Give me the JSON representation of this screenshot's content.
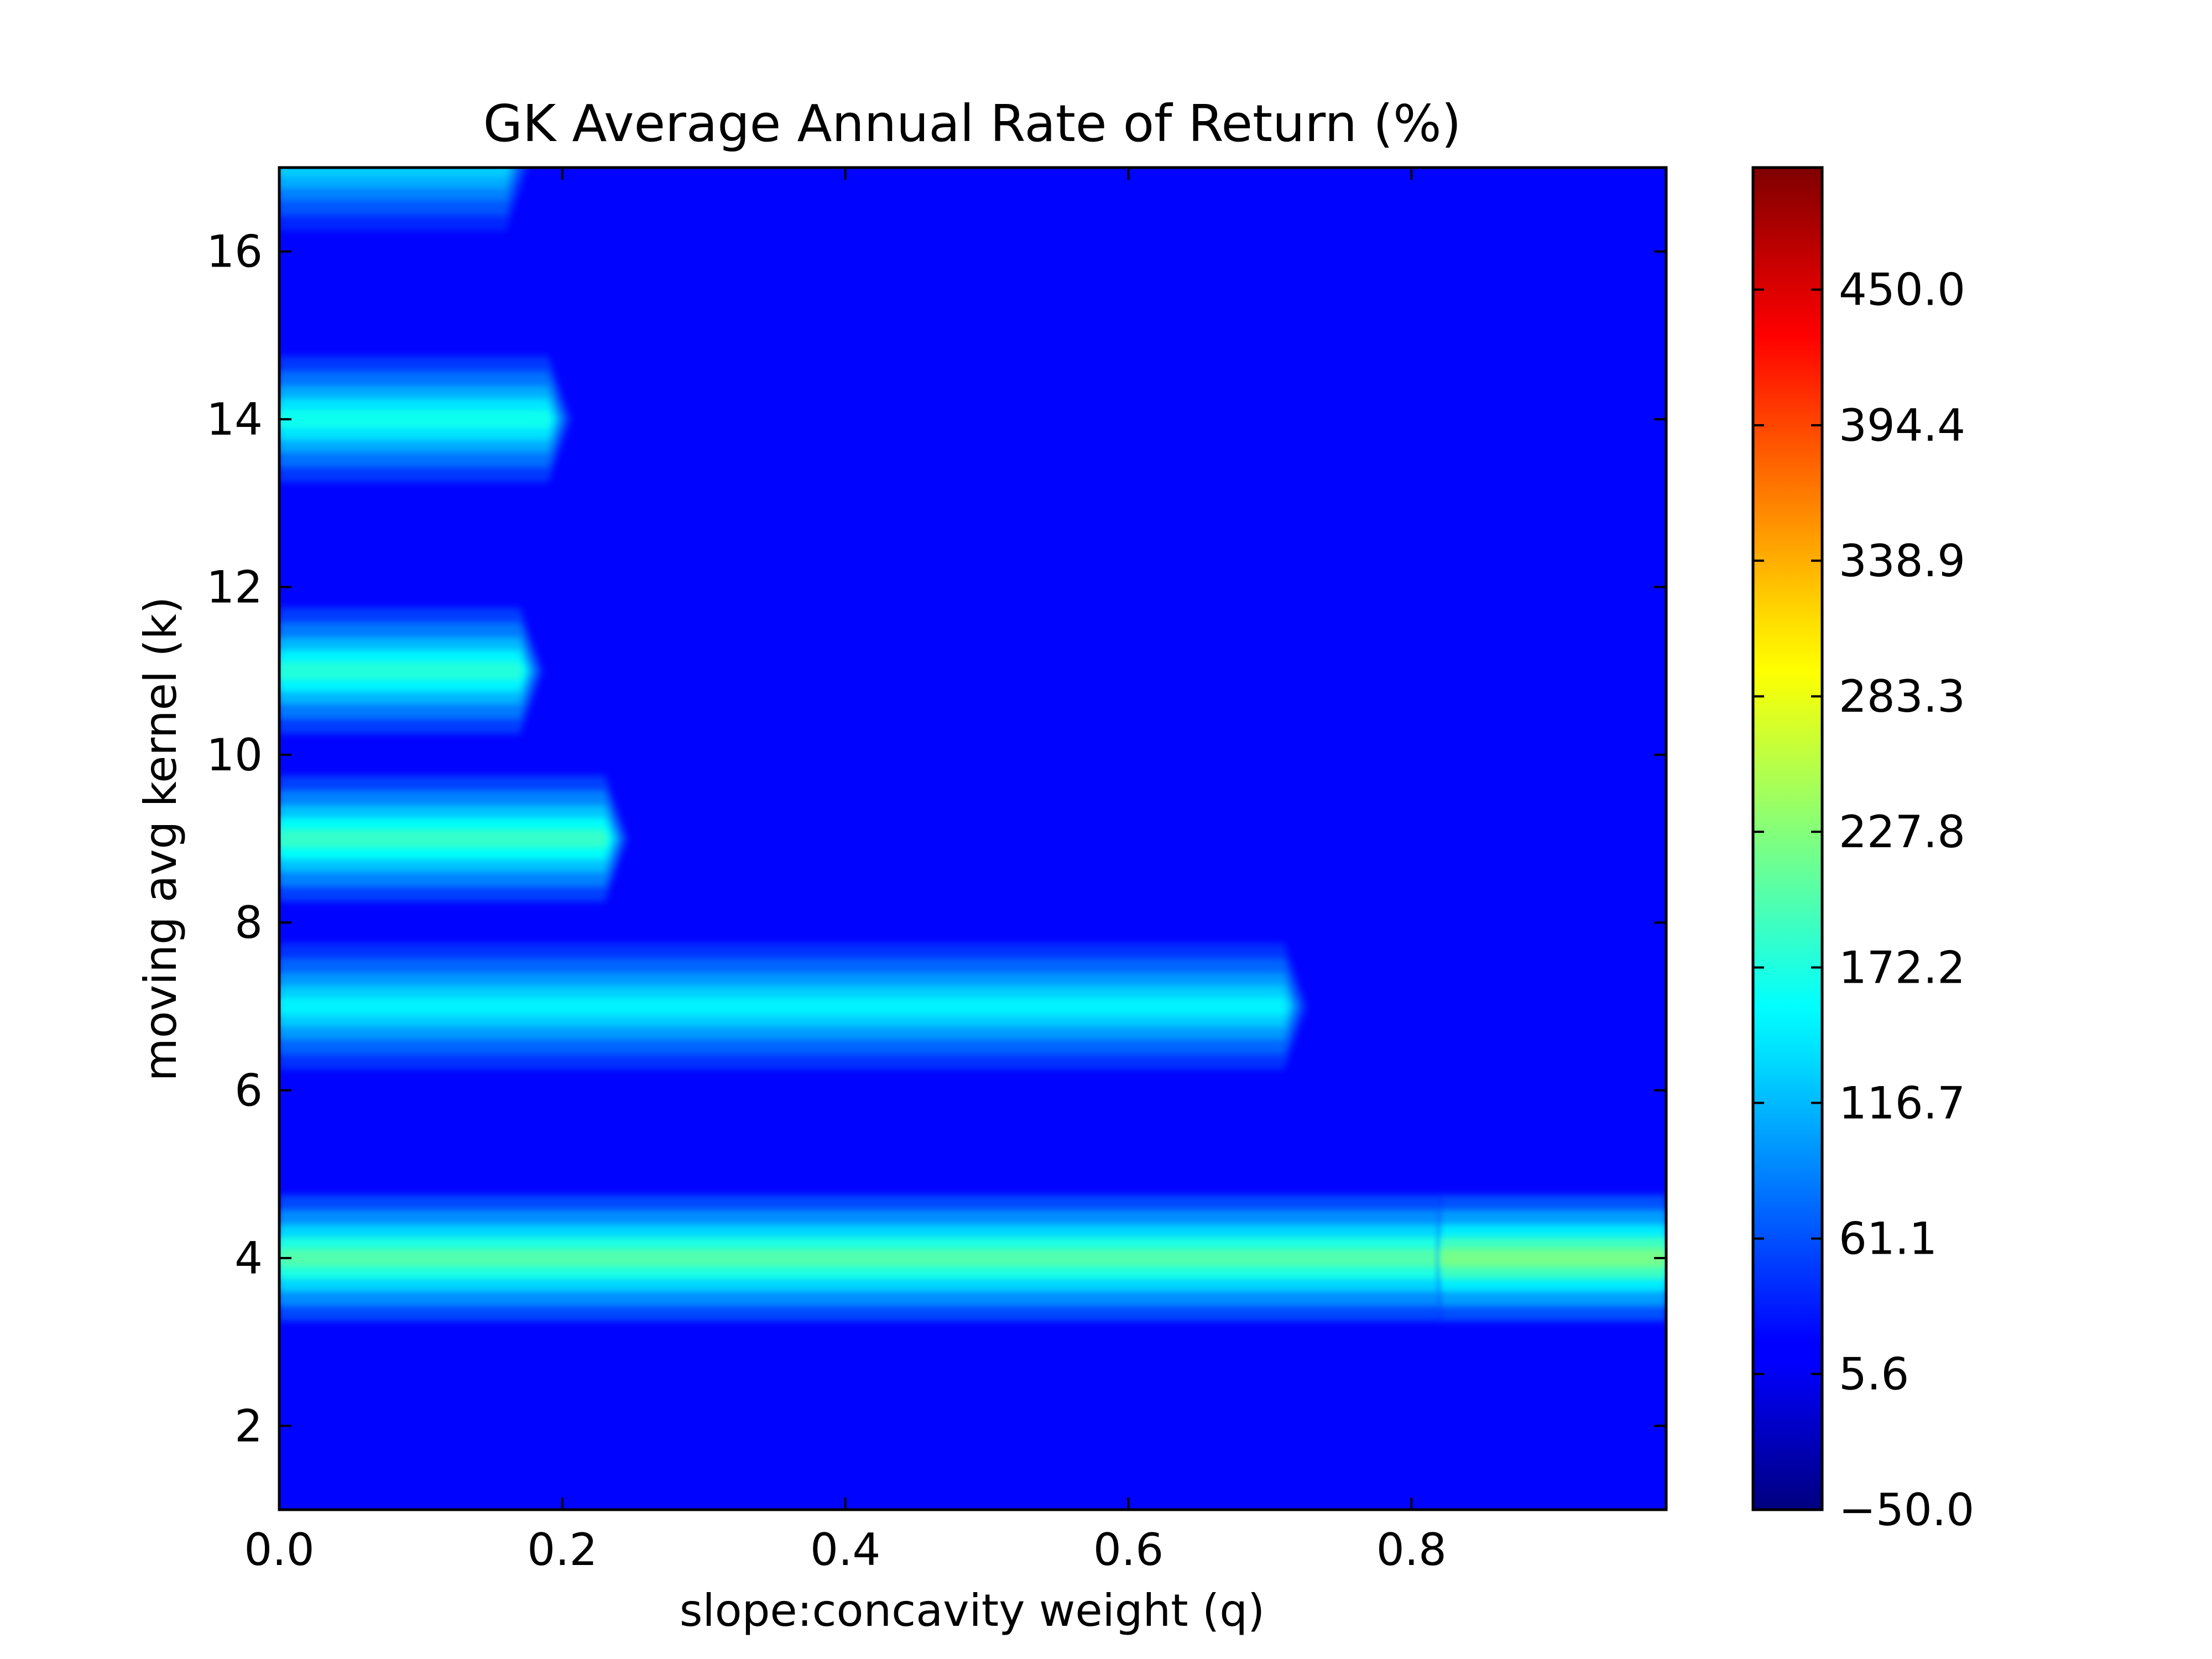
{
  "chart_data": {
    "type": "heatmap",
    "title": "GK Average Annual Rate of Return (%)",
    "xlabel": "slope:concavity weight (q)",
    "ylabel": "moving avg kernel (k)",
    "xlim": [
      0.0,
      0.98
    ],
    "ylim": [
      1,
      17
    ],
    "x_ticks": [
      0.0,
      0.2,
      0.4,
      0.6,
      0.8
    ],
    "x_tick_labels": [
      "0.0",
      "0.2",
      "0.4",
      "0.6",
      "0.8"
    ],
    "y_ticks": [
      2,
      4,
      6,
      8,
      10,
      12,
      14,
      16
    ],
    "y_tick_labels": [
      "2",
      "4",
      "6",
      "8",
      "10",
      "12",
      "14",
      "16"
    ],
    "colorbar": {
      "colormap": "jet",
      "range": [
        -50.0,
        500.0
      ],
      "ticks": [
        -50.0,
        5.6,
        61.1,
        116.7,
        172.2,
        227.8,
        283.3,
        338.9,
        394.4,
        450.0
      ],
      "tick_labels": [
        "−50.0",
        "5.6",
        "61.1",
        "116.7",
        "172.2",
        "227.8",
        "283.3",
        "338.9",
        "394.4",
        "450.0"
      ]
    },
    "background_value": 10,
    "bands": [
      {
        "k": 4,
        "q_end": 0.82,
        "value": 200
      },
      {
        "k": 7,
        "q_end": 0.71,
        "value": 150
      },
      {
        "k": 9,
        "q_end": 0.23,
        "value": 185
      },
      {
        "k": 11,
        "q_end": 0.17,
        "value": 175
      },
      {
        "k": 14,
        "q_end": 0.19,
        "value": 165
      },
      {
        "k": 17,
        "q_end": 0.16,
        "value": 130
      }
    ],
    "bands_beyond": [
      {
        "k": 4,
        "q_start": 0.82,
        "q_end": 0.98,
        "value": 220
      }
    ],
    "grid": false
  }
}
